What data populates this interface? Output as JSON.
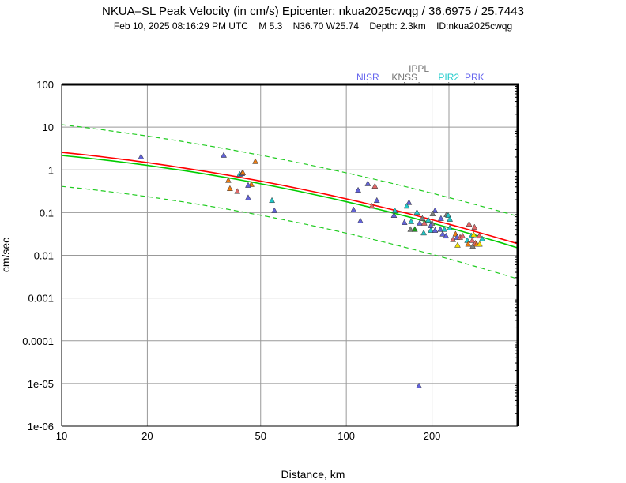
{
  "chart_data": {
    "type": "scatter",
    "title": "NKUA–SL Peak Velocity (in cm/s) Epicenter: nkua2025cwqg / 36.6975 / 25.7443",
    "subtitle": "Feb 10, 2025 08:16:29 PM UTC    M 5.3    N36.70 W25.74    Depth: 2.3km    ID:nkua2025cwqg",
    "xlabel": "Distance, km",
    "ylabel": "cm/sec",
    "xscale": "log",
    "yscale": "log",
    "xlim": [
      10,
      400
    ],
    "ylim": [
      1e-06,
      100
    ],
    "grid": true,
    "xticks": [
      {
        "v": 10,
        "label": "10"
      },
      {
        "v": 20,
        "label": "20"
      },
      {
        "v": 50,
        "label": "50"
      },
      {
        "v": 100,
        "label": "100"
      },
      {
        "v": 200,
        "label": "200"
      }
    ],
    "yticks": [
      {
        "v": 100,
        "label": "100"
      },
      {
        "v": 10,
        "label": "10"
      },
      {
        "v": 1,
        "label": "1"
      },
      {
        "v": 0.1,
        "label": "0.1"
      },
      {
        "v": 0.01,
        "label": "0.01"
      },
      {
        "v": 0.001,
        "label": "0.001"
      },
      {
        "v": 0.0001,
        "label": "0.0001"
      },
      {
        "v": 1e-05,
        "label": "1e-05"
      },
      {
        "v": 1e-06,
        "label": "1e-06"
      }
    ],
    "colors": {
      "b": "#6262d8",
      "r": "#e06868",
      "o": "#f07c10",
      "c": "#22c8c8",
      "g": "#808080",
      "G": "#1a9a1a",
      "y": "#f2e000"
    },
    "curves": [
      {
        "name": "regression-red",
        "color": "#ff0000",
        "dashed": false,
        "points": [
          [
            10,
            2.57
          ],
          [
            100,
            0.21
          ],
          [
            400,
            0.0186
          ]
        ]
      },
      {
        "name": "regression-green",
        "color": "#00cc00",
        "dashed": false,
        "points": [
          [
            10,
            2.17
          ],
          [
            100,
            0.18
          ],
          [
            400,
            0.0149
          ]
        ]
      },
      {
        "name": "upper-bound",
        "color": "#22cc22",
        "dashed": true,
        "points": [
          [
            10,
            11.4
          ],
          [
            100,
            0.85
          ],
          [
            400,
            0.082
          ]
        ]
      },
      {
        "name": "lower-bound",
        "color": "#22cc22",
        "dashed": true,
        "points": [
          [
            10,
            0.41
          ],
          [
            100,
            0.033
          ],
          [
            400,
            0.0028
          ]
        ]
      }
    ],
    "stations": [
      {
        "label": "NISR",
        "distance": 119,
        "color": "#6666ee",
        "raised": false
      },
      {
        "label": "KNSS",
        "distance": 160,
        "color": "#777777",
        "raised": false
      },
      {
        "label": "IPPL",
        "distance": 180,
        "color": "#777777",
        "raised": true
      },
      {
        "label": "PIR2",
        "distance": 229,
        "color": "#22cccc",
        "raised": false
      },
      {
        "label": "PRK",
        "distance": 282,
        "color": "#6666ee",
        "raised": false
      }
    ],
    "points": [
      [
        19,
        2.0,
        "b"
      ],
      [
        37.1,
        2.17,
        "b"
      ],
      [
        47.9,
        1.55,
        "o"
      ],
      [
        42.2,
        0.78,
        "c"
      ],
      [
        43.0,
        0.81,
        "b"
      ],
      [
        43.3,
        0.85,
        "o"
      ],
      [
        38.5,
        0.56,
        "o"
      ],
      [
        46.4,
        0.45,
        "o"
      ],
      [
        45.2,
        0.43,
        "b"
      ],
      [
        39.0,
        0.36,
        "o"
      ],
      [
        41.4,
        0.31,
        "r"
      ],
      [
        45.2,
        0.22,
        "b"
      ],
      [
        54.8,
        0.19,
        "c"
      ],
      [
        55.9,
        0.11,
        "b"
      ],
      [
        119,
        0.47,
        "b"
      ],
      [
        126,
        0.41,
        "r"
      ],
      [
        110,
        0.33,
        "b"
      ],
      [
        128,
        0.19,
        "b"
      ],
      [
        123,
        0.14,
        "r"
      ],
      [
        106,
        0.115,
        "b"
      ],
      [
        112,
        0.063,
        "b"
      ],
      [
        148,
        0.11,
        "c"
      ],
      [
        147,
        0.085,
        "b"
      ],
      [
        166,
        0.17,
        "b"
      ],
      [
        163,
        0.14,
        "c"
      ],
      [
        177,
        0.1,
        "c"
      ],
      [
        205,
        0.11,
        "b"
      ],
      [
        201,
        0.093,
        "g"
      ],
      [
        160,
        0.058,
        "b"
      ],
      [
        169,
        0.061,
        "c"
      ],
      [
        185,
        0.072,
        "g"
      ],
      [
        181,
        0.056,
        "b"
      ],
      [
        188,
        0.056,
        "r"
      ],
      [
        194,
        0.066,
        "c"
      ],
      [
        200,
        0.056,
        "g"
      ],
      [
        198,
        0.049,
        "b"
      ],
      [
        168,
        0.04,
        "g"
      ],
      [
        174,
        0.04,
        "G"
      ],
      [
        187,
        0.033,
        "c"
      ],
      [
        198,
        0.038,
        "c"
      ],
      [
        205,
        0.038,
        "b"
      ],
      [
        214,
        0.04,
        "b"
      ],
      [
        221,
        0.04,
        "c"
      ],
      [
        231,
        0.043,
        "c"
      ],
      [
        215,
        0.072,
        "b"
      ],
      [
        225,
        0.089,
        "g"
      ],
      [
        228,
        0.085,
        "c"
      ],
      [
        231,
        0.069,
        "c"
      ],
      [
        218,
        0.031,
        "b"
      ],
      [
        224,
        0.028,
        "b"
      ],
      [
        242,
        0.031,
        "o"
      ],
      [
        245,
        0.026,
        "b"
      ],
      [
        251,
        0.026,
        "r"
      ],
      [
        256,
        0.028,
        "r"
      ],
      [
        237,
        0.023,
        "r"
      ],
      [
        246,
        0.017,
        "y"
      ],
      [
        270,
        0.053,
        "r"
      ],
      [
        282,
        0.045,
        "r"
      ],
      [
        275,
        0.028,
        "c"
      ],
      [
        280,
        0.03,
        "y"
      ],
      [
        293,
        0.028,
        "r"
      ],
      [
        277,
        0.022,
        "r"
      ],
      [
        266,
        0.022,
        "c"
      ],
      [
        300,
        0.024,
        "c"
      ],
      [
        268,
        0.018,
        "o"
      ],
      [
        284,
        0.019,
        "r"
      ],
      [
        287,
        0.018,
        "o"
      ],
      [
        294,
        0.018,
        "y"
      ],
      [
        278,
        0.016,
        "g"
      ],
      [
        180,
        8.7e-06,
        "b"
      ]
    ]
  }
}
